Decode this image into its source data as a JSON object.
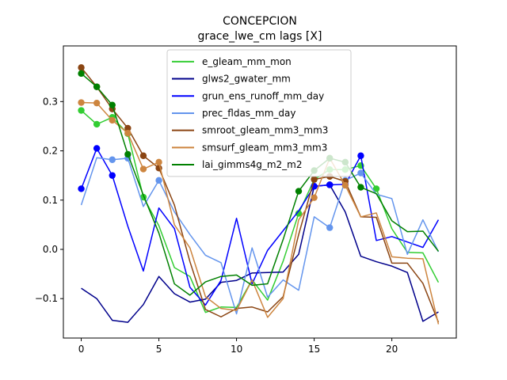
{
  "chart_data": {
    "type": "line",
    "title": "CONCEPCION",
    "subtitle": "grace_lwe_cm lags [X]",
    "xlabel": "",
    "ylabel": "",
    "xlim": [
      -1.15,
      24.15
    ],
    "ylim": [
      -0.18,
      0.413
    ],
    "x_ticks": [
      0,
      5,
      10,
      15,
      20
    ],
    "x_tick_labels": [
      "0",
      "5",
      "10",
      "15",
      "20"
    ],
    "y_ticks": [
      -0.1,
      0.0,
      0.1,
      0.2,
      0.3
    ],
    "y_tick_labels": [
      "−0.1",
      "0.0",
      "0.1",
      "0.2",
      "0.3"
    ],
    "grid": false,
    "legend_position": "top-center",
    "x": [
      0,
      1,
      2,
      3,
      4,
      5,
      6,
      7,
      8,
      9,
      10,
      11,
      12,
      13,
      14,
      15,
      16,
      17,
      18,
      19,
      20,
      21,
      22,
      23
    ],
    "series": [
      {
        "name": "e_gleam_mm_mon",
        "color": "#32cd32",
        "values": [
          0.282,
          0.254,
          0.268,
          0.235,
          0.106,
          0.048,
          -0.037,
          -0.055,
          -0.128,
          -0.117,
          -0.118,
          -0.062,
          -0.103,
          -0.024,
          0.073,
          0.142,
          0.162,
          0.162,
          0.17,
          0.123,
          0.042,
          -0.006,
          -0.007,
          -0.067
        ],
        "markers": [
          0,
          1,
          2,
          3,
          4,
          14,
          15,
          16,
          17,
          18,
          19
        ]
      },
      {
        "name": "glws2_gwater_mm",
        "color": "#00008b",
        "values": [
          -0.079,
          -0.1,
          -0.144,
          -0.148,
          -0.112,
          -0.055,
          -0.09,
          -0.107,
          -0.101,
          -0.067,
          -0.063,
          -0.048,
          -0.047,
          -0.046,
          -0.01,
          0.128,
          0.131,
          0.076,
          -0.014,
          -0.025,
          -0.034,
          -0.047,
          -0.146,
          -0.127
        ],
        "markers": [
          15,
          16
        ]
      },
      {
        "name": "grun_ens_runoff_mm_day",
        "color": "#0000ff",
        "values": [
          0.123,
          0.205,
          0.15,
          0.047,
          -0.044,
          0.084,
          0.042,
          -0.077,
          -0.113,
          -0.063,
          0.063,
          -0.07,
          -0.002,
          0.038,
          0.078,
          0.128,
          0.131,
          0.132,
          0.19,
          0.018,
          0.026,
          0.015,
          0.004,
          0.06
        ],
        "markers": [
          0,
          1,
          2,
          15,
          16,
          17,
          18
        ]
      },
      {
        "name": "prec_fldas_mm_day",
        "color": "#6495ed",
        "values": [
          0.09,
          0.186,
          0.182,
          0.185,
          0.087,
          0.14,
          0.076,
          0.03,
          -0.012,
          -0.027,
          -0.131,
          0.003,
          -0.097,
          -0.062,
          -0.083,
          0.066,
          0.044,
          0.14,
          0.155,
          0.112,
          0.103,
          -0.01,
          0.06,
          -0.005
        ],
        "markers": [
          2,
          3,
          5,
          16,
          17,
          18
        ]
      },
      {
        "name": "smroot_gleam_mm3_mm3",
        "color": "#8b4513",
        "values": [
          0.369,
          0.33,
          0.285,
          0.246,
          0.19,
          0.165,
          0.09,
          -0.025,
          -0.122,
          -0.137,
          -0.12,
          -0.117,
          -0.127,
          -0.096,
          0.03,
          0.142,
          0.148,
          0.138,
          0.066,
          0.065,
          -0.028,
          -0.028,
          -0.069,
          -0.148
        ],
        "markers": [
          0,
          1,
          2,
          3,
          4,
          5,
          15,
          16,
          17
        ]
      },
      {
        "name": "smsurf_gleam_mm3_mm3",
        "color": "#cd853f",
        "values": [
          0.298,
          0.297,
          0.262,
          0.236,
          0.163,
          0.177,
          0.05,
          0.003,
          -0.096,
          -0.12,
          -0.124,
          -0.062,
          -0.138,
          -0.1,
          0.06,
          0.105,
          0.185,
          0.13,
          0.066,
          0.074,
          -0.015,
          -0.018,
          -0.019,
          -0.152
        ],
        "markers": [
          0,
          1,
          2,
          3,
          4,
          5,
          15,
          16,
          17
        ]
      },
      {
        "name": "lai_gimms4g_m2_m2",
        "color": "#008000",
        "values": [
          0.357,
          0.33,
          0.293,
          0.193,
          0.11,
          0.033,
          -0.07,
          -0.093,
          -0.066,
          -0.055,
          -0.052,
          -0.073,
          -0.07,
          0.02,
          0.118,
          0.16,
          0.185,
          0.177,
          0.126,
          0.113,
          0.058,
          0.036,
          0.037,
          -0.004
        ],
        "markers": [
          0,
          1,
          2,
          3,
          14,
          15,
          16,
          17,
          18
        ]
      }
    ]
  }
}
